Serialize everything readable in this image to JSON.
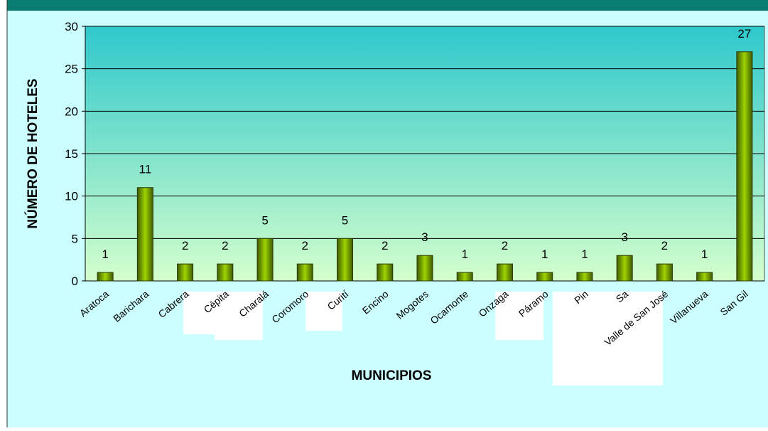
{
  "chart_data": {
    "type": "bar",
    "xlabel": "MUNICIPIOS",
    "ylabel": "NÚMERO DE HOTELES",
    "categories": [
      "Aratoca",
      "Barichara",
      "Cabrera",
      "Cépita",
      "Charalá",
      "Coromoro",
      "Curití",
      "Encino",
      "Mogotes",
      "Ocamonte",
      "Onzaga",
      "Páramo",
      "Pin",
      "Sa",
      "Valle de San José",
      "Villanueva",
      "San Gil"
    ],
    "values": [
      1,
      11,
      2,
      2,
      5,
      2,
      5,
      2,
      3,
      1,
      2,
      1,
      1,
      3,
      2,
      1,
      27
    ],
    "color": "#6b9a00",
    "ylim": [
      0,
      30
    ],
    "yticks": [
      0,
      5,
      10,
      15,
      20,
      25,
      30
    ],
    "grid": true
  }
}
